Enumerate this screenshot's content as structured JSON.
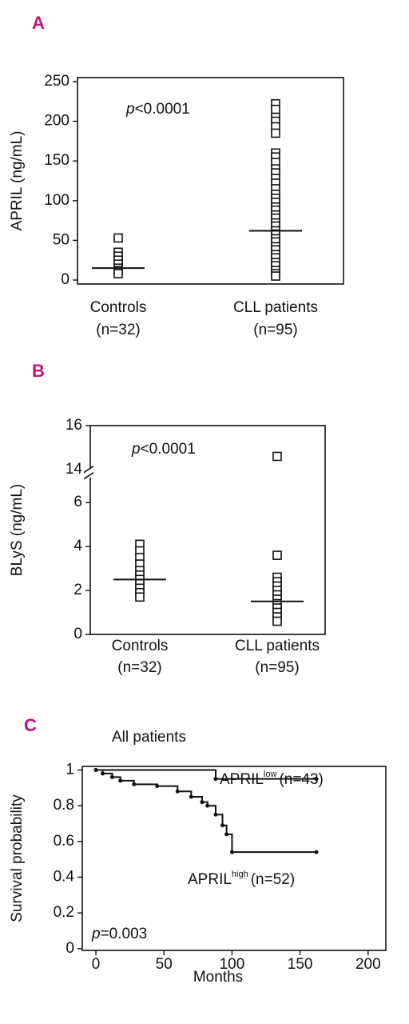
{
  "chart_data": [
    {
      "type": "scatter",
      "panel": "A",
      "ylabel": "APRIL (ng/mL)",
      "annotation": {
        "italic": "p",
        "text": "<0.0001"
      },
      "categories": [
        "Controls",
        "CLL patients"
      ],
      "category_notes": [
        "(n=32)",
        "(n=95)"
      ],
      "series": [
        {
          "values": [
            53,
            35,
            30,
            25,
            20,
            15,
            12,
            8
          ]
        },
        {
          "values": [
            222,
            215,
            205,
            200,
            193,
            185,
            160,
            155,
            148,
            140,
            135,
            128,
            122,
            115,
            108,
            103,
            98,
            92,
            88,
            82,
            78,
            72,
            68,
            62,
            58,
            52,
            48,
            42,
            38,
            32,
            28,
            22,
            18,
            12,
            8,
            5
          ]
        }
      ],
      "medians": [
        15,
        62
      ],
      "ylim": [
        -5,
        255
      ],
      "yticks": [
        0,
        50,
        100,
        150,
        200,
        250
      ]
    },
    {
      "type": "scatter",
      "panel": "B",
      "ylabel": "BLyS (ng/mL)",
      "annotation": {
        "italic": "p",
        "text": "<0.0001"
      },
      "categories": [
        "Controls",
        "CLL patients"
      ],
      "category_notes": [
        "(n=32)",
        "(n=95)"
      ],
      "series": [
        {
          "values": [
            4.1,
            3.8,
            3.5,
            3.2,
            2.9,
            2.7,
            2.5,
            2.3,
            2.1,
            1.9,
            1.7
          ]
        },
        {
          "values": [
            14.6,
            3.6,
            2.6,
            2.4,
            2.2,
            2.0,
            1.8,
            1.6,
            1.4,
            1.2,
            1.0,
            0.8,
            0.6
          ]
        }
      ],
      "medians": [
        2.5,
        1.5
      ],
      "ylim": [
        0,
        16
      ],
      "ybreak": [
        7,
        13.5
      ],
      "yticks": [
        0,
        2,
        4,
        6,
        14,
        16
      ]
    },
    {
      "type": "line",
      "panel": "C",
      "title": "All patients",
      "ylabel": "Survival probability",
      "xlabel": "Months",
      "annotation": {
        "italic": "p",
        "text": "=0.003"
      },
      "series": [
        {
          "name": "APRIL",
          "sup": "low",
          "note": "(n=43)",
          "color": "#111",
          "x": [
            0,
            88,
            162
          ],
          "values": [
            1,
            0.95,
            0.95
          ]
        },
        {
          "name": "APRIL",
          "sup": "high",
          "note": "(n=52)",
          "color": "#111",
          "x": [
            0,
            5,
            12,
            18,
            28,
            45,
            60,
            70,
            78,
            82,
            88,
            93,
            96,
            100,
            162
          ],
          "values": [
            1,
            0.98,
            0.96,
            0.94,
            0.92,
            0.91,
            0.88,
            0.85,
            0.82,
            0.8,
            0.75,
            0.69,
            0.64,
            0.54,
            0.54
          ]
        }
      ],
      "xlim": [
        -10,
        213
      ],
      "xticks": [
        0,
        50,
        100,
        150,
        200
      ],
      "ylim": [
        -0.01,
        1.02
      ],
      "yticks": [
        0,
        0.2,
        0.4,
        0.6,
        0.8,
        1
      ]
    }
  ]
}
